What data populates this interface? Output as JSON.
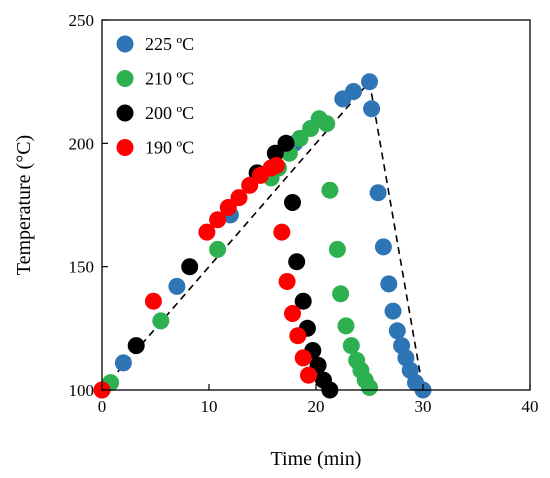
{
  "chart_data": {
    "type": "scatter",
    "title": "",
    "xlabel": "Time (min)",
    "ylabel": "Temperature (°C)",
    "xlim": [
      0,
      40
    ],
    "ylim": [
      100,
      250
    ],
    "xticks": [
      0,
      10,
      20,
      30,
      40
    ],
    "yticks": [
      100,
      150,
      200,
      250
    ],
    "grid": false,
    "legend": "top-left",
    "series": [
      {
        "name": "225 ºC",
        "color": "#2e75b6",
        "x": [
          0,
          2,
          7,
          12,
          18,
          22.5,
          23.5,
          25,
          25.2,
          25.8,
          26.3,
          26.8,
          27.2,
          27.6,
          28,
          28.4,
          28.8,
          29.3,
          30
        ],
        "y": [
          100,
          111,
          142,
          171,
          200,
          218,
          221,
          225,
          214,
          180,
          158,
          143,
          132,
          124,
          118,
          113,
          108,
          103,
          100
        ]
      },
      {
        "name": "210 ºC",
        "color": "#2db050",
        "x": [
          0.8,
          5.5,
          10.8,
          15.8,
          16.5,
          17.5,
          18.5,
          19.5,
          20.3,
          21,
          21.3,
          22,
          22.3,
          22.8,
          23.3,
          23.8,
          24.2,
          24.6,
          25
        ],
        "y": [
          103,
          128,
          157,
          186,
          190,
          196,
          202,
          206,
          210,
          208,
          181,
          157,
          139,
          126,
          118,
          112,
          108,
          104,
          101
        ]
      },
      {
        "name": "200 ºC",
        "color": "#000000",
        "x": [
          3.2,
          8.2,
          14.5,
          16.2,
          17.2,
          17.8,
          18.2,
          18.8,
          19.2,
          19.7,
          20.2,
          20.7,
          21.3
        ],
        "y": [
          118,
          150,
          188,
          196,
          200,
          176,
          152,
          136,
          125,
          116,
          110,
          104,
          100
        ]
      },
      {
        "name": "190 ºC",
        "color": "#ff0000",
        "x": [
          0,
          4.8,
          9.8,
          10.8,
          11.8,
          12.8,
          13.8,
          14.8,
          15.8,
          16.3,
          16.8,
          17.3,
          17.8,
          18.3,
          18.8,
          19.3
        ],
        "y": [
          100,
          136,
          164,
          169,
          174,
          178,
          183,
          187,
          190,
          191,
          164,
          144,
          131,
          122,
          113,
          106
        ]
      }
    ],
    "fit_line": {
      "style": "dashed",
      "color": "#000000",
      "x": [
        0,
        25,
        30
      ],
      "y": [
        100,
        225,
        100
      ]
    }
  }
}
